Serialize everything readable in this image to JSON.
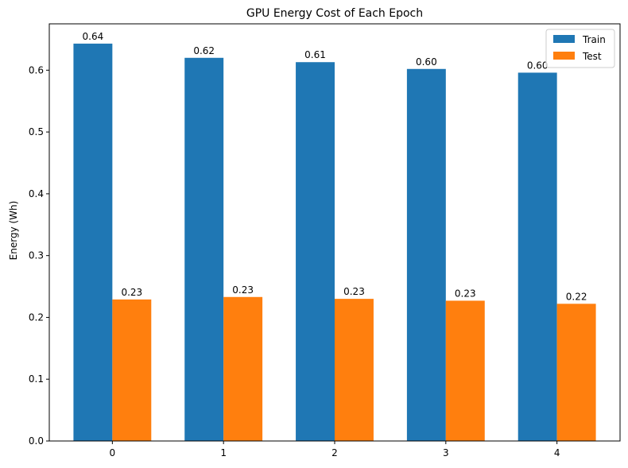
{
  "chart_data": {
    "type": "bar",
    "title": "GPU Energy Cost of Each Epoch",
    "xlabel": "",
    "ylabel": "Energy (Wh)",
    "categories": [
      "0",
      "1",
      "2",
      "3",
      "4"
    ],
    "series": [
      {
        "name": "Train",
        "color": "#1f77b4",
        "values": [
          0.643,
          0.62,
          0.613,
          0.602,
          0.596
        ],
        "labels": [
          "0.64",
          "0.62",
          "0.61",
          "0.60",
          "0.60"
        ]
      },
      {
        "name": "Test",
        "color": "#ff7f0e",
        "values": [
          0.229,
          0.233,
          0.23,
          0.227,
          0.222
        ],
        "labels": [
          "0.23",
          "0.23",
          "0.23",
          "0.23",
          "0.22"
        ]
      }
    ],
    "ylim": [
      0,
      0.675
    ],
    "yticks": [
      "0.0",
      "0.1",
      "0.2",
      "0.3",
      "0.4",
      "0.5",
      "0.6"
    ],
    "grid": false,
    "legend_position": "top-right"
  }
}
